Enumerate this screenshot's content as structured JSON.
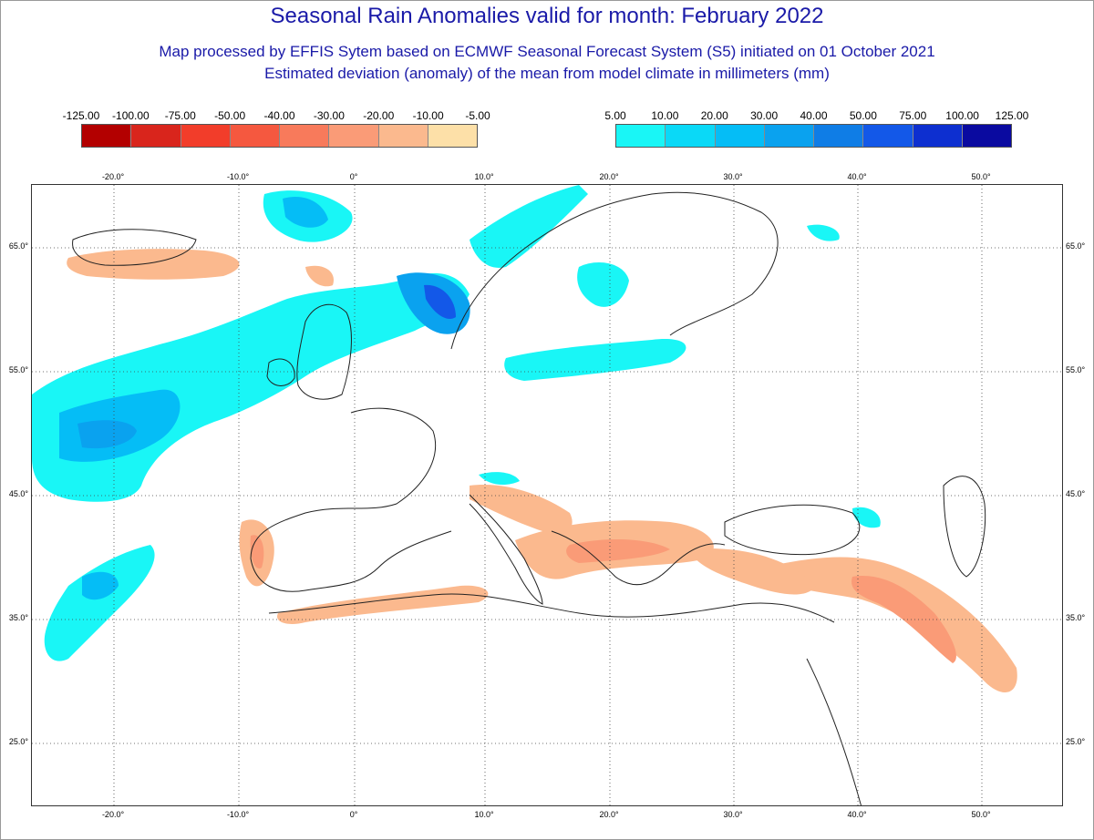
{
  "titles": {
    "main": "Seasonal Rain Anomalies valid for month: February 2022",
    "line2": "Map processed by EFFIS Sytem based on ECMWF Seasonal Forecast System (S5) initiated on 01 October 2021",
    "line3": "Estimated deviation (anomaly) of the mean from model climate in millimeters (mm)"
  },
  "legend_negative": {
    "labels": [
      "-125.00",
      "-100.00",
      "-75.00",
      "-50.00",
      "-40.00",
      "-30.00",
      "-20.00",
      "-10.00",
      "-5.00"
    ],
    "colors": [
      "#b30000",
      "#d9251c",
      "#f23d2a",
      "#f5583f",
      "#f87a5b",
      "#fa9b77",
      "#fbb98e",
      "#fde0a8"
    ]
  },
  "legend_positive": {
    "labels": [
      "5.00",
      "10.00",
      "20.00",
      "30.00",
      "40.00",
      "50.00",
      "75.00",
      "100.00",
      "125.00"
    ],
    "colors": [
      "#19f6f6",
      "#0ad9f7",
      "#05bdf6",
      "#0aa2ef",
      "#0f7de6",
      "#1358e8",
      "#0d2fd0",
      "#0a0aa0"
    ]
  },
  "axes": {
    "lon_labels": [
      "-20.0°",
      "-10.0°",
      "0°",
      "10.0°",
      "20.0°",
      "30.0°",
      "40.0°",
      "50.0°"
    ],
    "lat_labels": [
      "65.0°",
      "55.0°",
      "45.0°",
      "35.0°",
      "25.0°"
    ]
  }
}
